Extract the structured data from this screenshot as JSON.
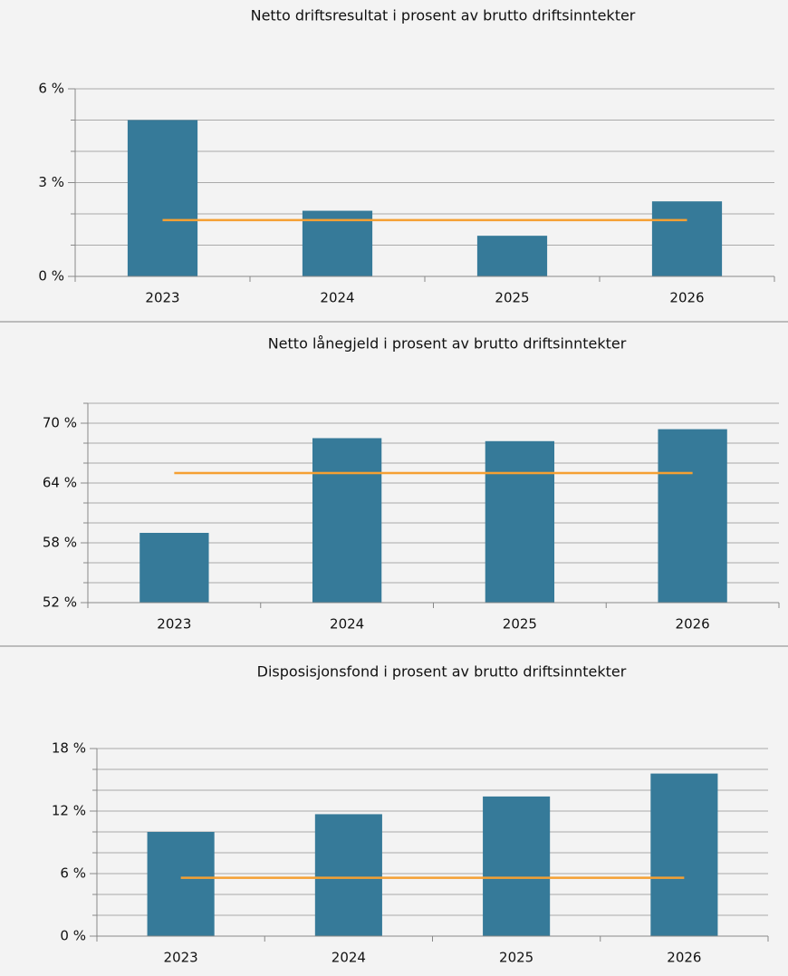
{
  "chart_data": [
    {
      "type": "bar",
      "title": "Netto driftsresultat i prosent av brutto driftsinntekter",
      "categories": [
        "2023",
        "2024",
        "2025",
        "2026"
      ],
      "values": [
        5.0,
        2.1,
        1.3,
        2.4
      ],
      "color": "#367a99",
      "reference_line": 1.8,
      "reference_color": "#f5a033",
      "ylim": [
        0,
        6
      ],
      "yticks": [
        {
          "value": 0,
          "label": "0 %"
        },
        {
          "value": 3,
          "label": "3 %"
        },
        {
          "value": 6,
          "label": "6 %"
        }
      ],
      "minor_yticks": [
        1,
        2,
        4,
        5
      ],
      "grid": true
    },
    {
      "type": "bar",
      "title": "Netto lånegjeld i prosent av brutto driftsinntekter",
      "categories": [
        "2023",
        "2024",
        "2025",
        "2026"
      ],
      "values": [
        59,
        68.5,
        68.2,
        69.4
      ],
      "color": "#367a99",
      "reference_line": 65,
      "reference_color": "#f5a033",
      "ylim": [
        52,
        72
      ],
      "yticks": [
        {
          "value": 52,
          "label": "52 %"
        },
        {
          "value": 58,
          "label": "58 %"
        },
        {
          "value": 64,
          "label": "64 %"
        },
        {
          "value": 70,
          "label": "70 %"
        }
      ],
      "minor_yticks": [
        54,
        56,
        60,
        62,
        66,
        68,
        72
      ],
      "grid": true
    },
    {
      "type": "bar",
      "title": "Disposisjonsfond i prosent av brutto driftsinntekter",
      "categories": [
        "2023",
        "2024",
        "2025",
        "2026"
      ],
      "values": [
        10,
        11.7,
        13.4,
        15.6
      ],
      "color": "#367a99",
      "reference_line": 5.6,
      "reference_color": "#f5a033",
      "ylim": [
        0,
        18
      ],
      "yticks": [
        {
          "value": 0,
          "label": "0 %"
        },
        {
          "value": 6,
          "label": "6 %"
        },
        {
          "value": 12,
          "label": "12 %"
        },
        {
          "value": 18,
          "label": "18 %"
        }
      ],
      "minor_yticks": [
        2,
        4,
        8,
        10,
        14,
        16
      ],
      "grid": true
    }
  ]
}
